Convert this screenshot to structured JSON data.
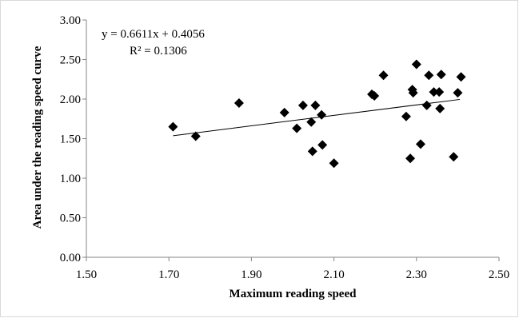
{
  "chart_data": {
    "type": "scatter",
    "title": "",
    "xlabel": "Maximum reading speed",
    "ylabel": "Area under the reading speed curve",
    "xlim": [
      1.5,
      2.5
    ],
    "ylim": [
      0.0,
      3.0
    ],
    "x_ticks": [
      "1.50",
      "1.70",
      "1.90",
      "2.10",
      "2.30",
      "2.50"
    ],
    "y_ticks": [
      "0.00",
      "0.50",
      "1.00",
      "1.50",
      "2.00",
      "2.50",
      "3.00"
    ],
    "grid": false,
    "legend": "none",
    "marker": "diamond",
    "marker_color": "#000000",
    "trendline": {
      "slope": 0.6611,
      "intercept": 0.4056,
      "x_range": [
        1.71,
        2.405
      ],
      "equation_label": "y = 0.6611x + 0.4056",
      "r2_label": "R² = 0.1306",
      "color": "#000000"
    },
    "points": [
      {
        "x": 1.71,
        "y": 1.65
      },
      {
        "x": 1.765,
        "y": 1.53
      },
      {
        "x": 1.87,
        "y": 1.95
      },
      {
        "x": 1.98,
        "y": 1.83
      },
      {
        "x": 2.01,
        "y": 1.63
      },
      {
        "x": 2.025,
        "y": 1.92
      },
      {
        "x": 2.045,
        "y": 1.71
      },
      {
        "x": 2.048,
        "y": 1.34
      },
      {
        "x": 2.055,
        "y": 1.92
      },
      {
        "x": 2.07,
        "y": 1.8
      },
      {
        "x": 2.072,
        "y": 1.42
      },
      {
        "x": 2.1,
        "y": 1.19
      },
      {
        "x": 2.192,
        "y": 2.06
      },
      {
        "x": 2.198,
        "y": 2.04
      },
      {
        "x": 2.22,
        "y": 2.3
      },
      {
        "x": 2.275,
        "y": 1.78
      },
      {
        "x": 2.285,
        "y": 1.25
      },
      {
        "x": 2.29,
        "y": 2.12
      },
      {
        "x": 2.292,
        "y": 2.08
      },
      {
        "x": 2.3,
        "y": 2.44
      },
      {
        "x": 2.31,
        "y": 1.43
      },
      {
        "x": 2.325,
        "y": 1.92
      },
      {
        "x": 2.33,
        "y": 2.3
      },
      {
        "x": 2.342,
        "y": 2.09
      },
      {
        "x": 2.355,
        "y": 2.09
      },
      {
        "x": 2.357,
        "y": 1.88
      },
      {
        "x": 2.36,
        "y": 2.31
      },
      {
        "x": 2.39,
        "y": 1.27
      },
      {
        "x": 2.4,
        "y": 2.08
      },
      {
        "x": 2.408,
        "y": 2.28
      }
    ]
  }
}
